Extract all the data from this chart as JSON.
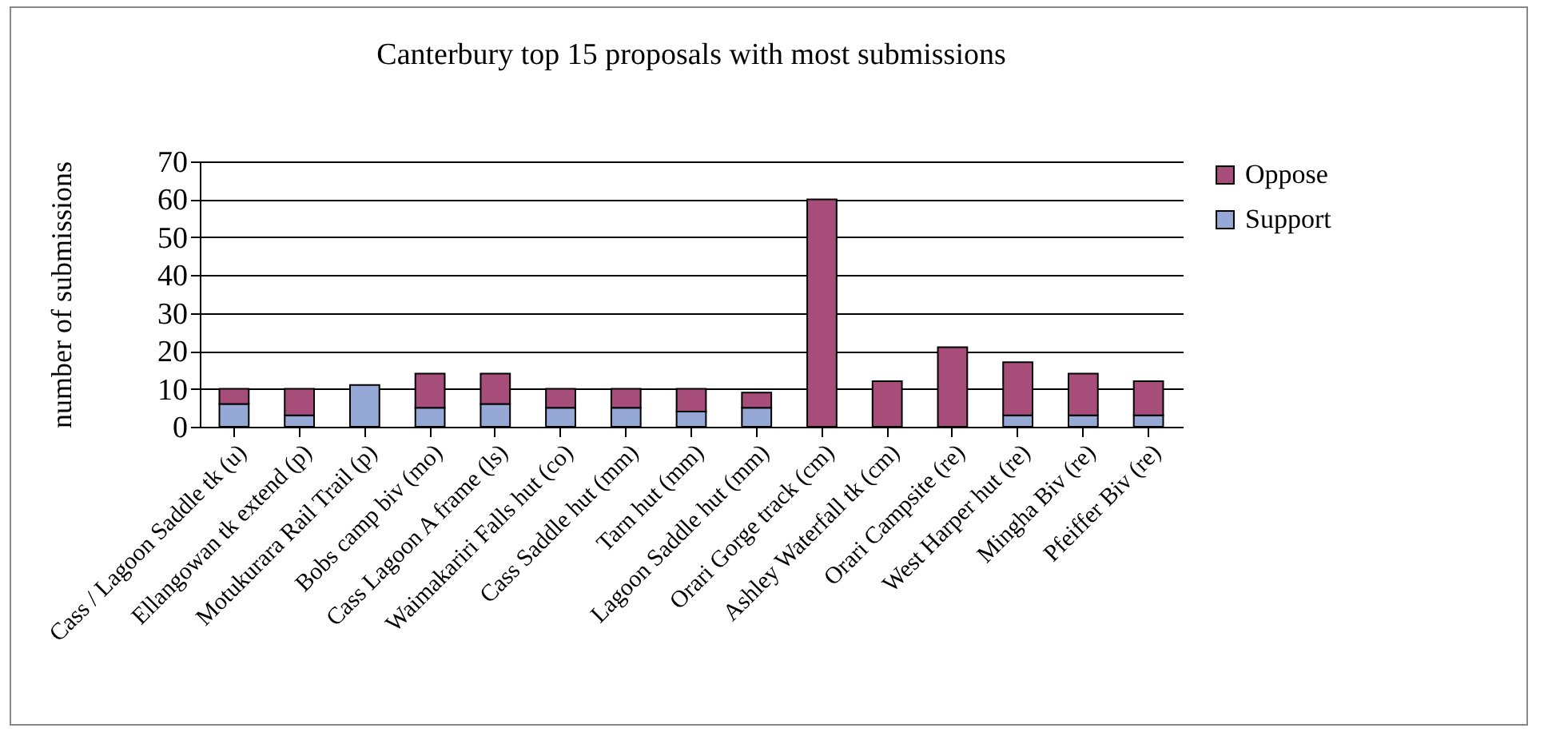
{
  "chart_data": {
    "type": "bar",
    "title": "Canterbury top 15 proposals with most submissions",
    "ylabel": "number of submissions",
    "categories": [
      "Cass / Lagoon Saddle tk (u)",
      "Ellangowan tk extend (p)",
      "Motukurara Rail Trail (p)",
      "Bobs camp biv (mo)",
      "Cass Lagoon A frame (ls)",
      "Waimakariri Falls hut (co)",
      "Cass Saddle hut (mm)",
      "Tarn hut (mm)",
      "Lagoon Saddle hut (mm)",
      "Orari Gorge track (cm)",
      "Ashley Waterfall tk (cm)",
      "Orari Campsite (re)",
      "West Harper hut (re)",
      "Mingha Biv (re)",
      "Pfeiffer Biv (re)"
    ],
    "series": [
      {
        "name": "Support",
        "color": "#95a8d6",
        "values": [
          6,
          3,
          11,
          5,
          6,
          5,
          5,
          4,
          5,
          null,
          null,
          null,
          3,
          3,
          3
        ]
      },
      {
        "name": "Oppose",
        "color": "#a64d7a",
        "values": [
          4,
          7,
          null,
          9,
          8,
          5,
          5,
          6,
          4,
          60,
          12,
          21,
          14,
          11,
          9
        ]
      }
    ],
    "stacked": true,
    "ylim": [
      0,
      70
    ],
    "yticks": [
      0,
      10,
      20,
      30,
      40,
      50,
      60,
      70
    ],
    "grid": "y",
    "legend": "right"
  }
}
